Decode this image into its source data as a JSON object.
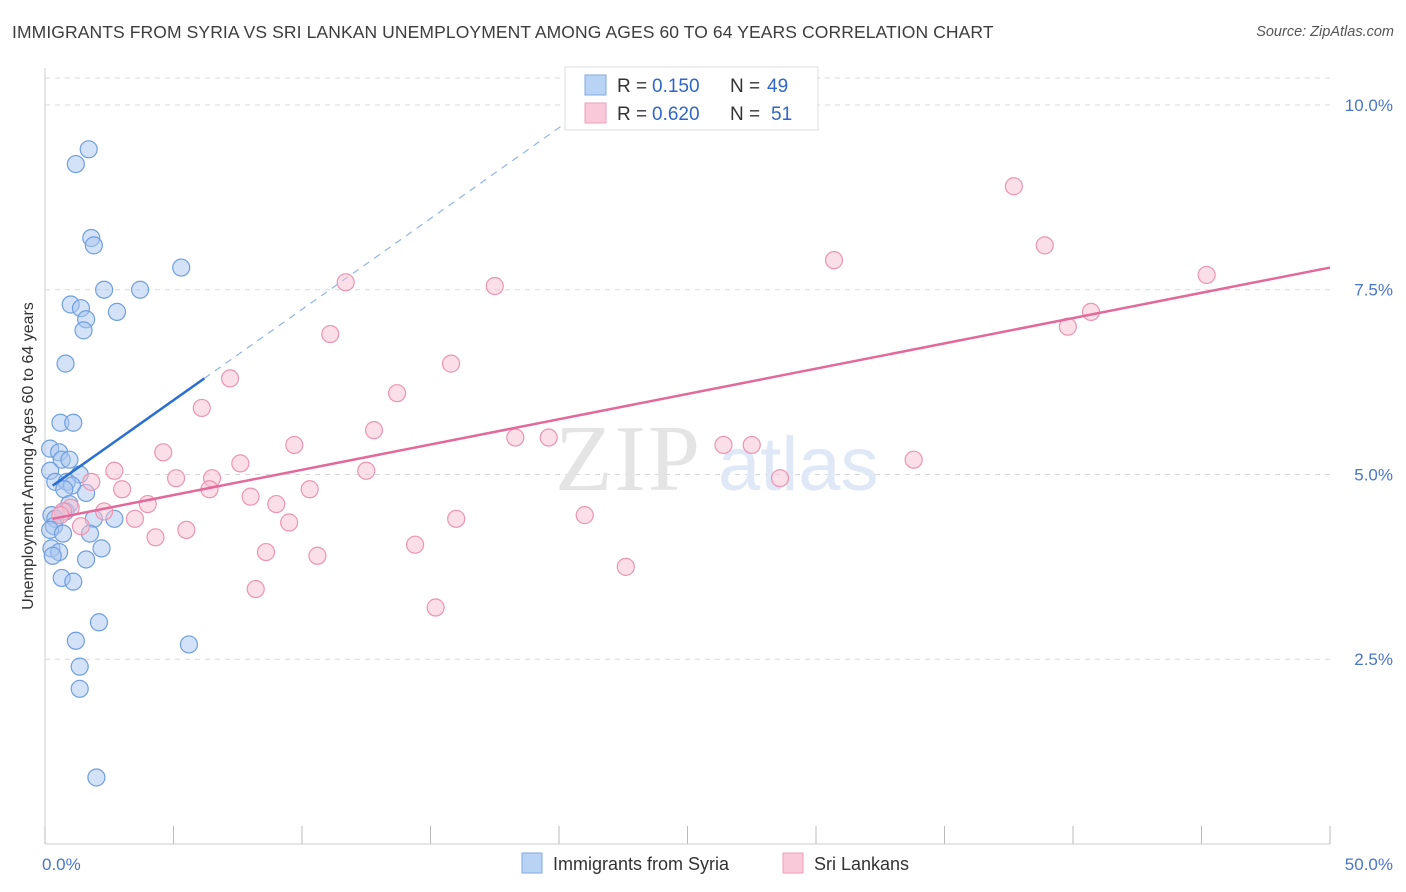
{
  "header": {
    "title": "IMMIGRANTS FROM SYRIA VS SRI LANKAN UNEMPLOYMENT AMONG AGES 60 TO 64 YEARS CORRELATION CHART",
    "source": "Source: ZipAtlas.com"
  },
  "watermark": {
    "zip": "ZIP",
    "atlas": "atlas"
  },
  "colors": {
    "syria_fill": "#a9c6f0",
    "syria_stroke": "#6f9fe0",
    "syria_line": "#2a6fcf",
    "srilanka_fill": "#f6bfd1",
    "srilanka_stroke": "#ec94b2",
    "srilanka_line": "#e2699a",
    "tick_label": "#4a76c8",
    "grid": "#d8d8d8"
  },
  "chart_data": {
    "type": "scatter",
    "title": "IMMIGRANTS FROM SYRIA VS SRI LANKAN UNEMPLOYMENT AMONG AGES 60 TO 64 YEARS CORRELATION CHART",
    "xlabel": "",
    "ylabel": "Unemployment Among Ages 60 to 64 years",
    "xlim": [
      0,
      50
    ],
    "ylim": [
      0,
      10.5
    ],
    "x_tick_labels": [
      "0.0%",
      "50.0%"
    ],
    "y_ticks": [
      {
        "value": 2.5,
        "label": "2.5%"
      },
      {
        "value": 5.0,
        "label": "5.0%"
      },
      {
        "value": 7.5,
        "label": "7.5%"
      },
      {
        "value": 10.0,
        "label": "10.0%"
      }
    ],
    "legend": {
      "entries": [
        {
          "r_label": "R =",
          "r_value": "0.150",
          "n_label": "N =",
          "n_value": "49"
        },
        {
          "r_label": "R =",
          "r_value": "0.620",
          "n_label": "N =",
          "n_value": "51"
        }
      ]
    },
    "series": [
      {
        "name": "Immigrants from Syria",
        "trend": {
          "x0": 0.3,
          "y0": 4.85,
          "x1": 6.2,
          "y1": 6.3,
          "extend_to_x": 21.2
        },
        "points": [
          [
            1.7,
            9.4
          ],
          [
            1.2,
            9.2
          ],
          [
            1.8,
            8.2
          ],
          [
            1.9,
            8.1
          ],
          [
            5.3,
            7.8
          ],
          [
            2.3,
            7.5
          ],
          [
            3.7,
            7.5
          ],
          [
            1.0,
            7.3
          ],
          [
            1.4,
            7.25
          ],
          [
            1.6,
            7.1
          ],
          [
            2.8,
            7.2
          ],
          [
            1.5,
            6.95
          ],
          [
            0.8,
            6.5
          ],
          [
            0.6,
            5.7
          ],
          [
            1.1,
            5.7
          ],
          [
            0.2,
            5.35
          ],
          [
            0.55,
            5.3
          ],
          [
            0.65,
            5.2
          ],
          [
            0.95,
            5.2
          ],
          [
            0.2,
            5.05
          ],
          [
            1.35,
            5.0
          ],
          [
            0.4,
            4.9
          ],
          [
            0.85,
            4.9
          ],
          [
            1.05,
            4.85
          ],
          [
            0.75,
            4.8
          ],
          [
            1.6,
            4.75
          ],
          [
            0.95,
            4.6
          ],
          [
            0.8,
            4.5
          ],
          [
            0.25,
            4.45
          ],
          [
            0.4,
            4.4
          ],
          [
            1.9,
            4.4
          ],
          [
            2.7,
            4.4
          ],
          [
            0.35,
            4.3
          ],
          [
            0.2,
            4.25
          ],
          [
            0.7,
            4.2
          ],
          [
            1.75,
            4.2
          ],
          [
            0.25,
            4.0
          ],
          [
            2.2,
            4.0
          ],
          [
            0.55,
            3.95
          ],
          [
            0.3,
            3.9
          ],
          [
            1.6,
            3.85
          ],
          [
            0.65,
            3.6
          ],
          [
            1.1,
            3.55
          ],
          [
            2.1,
            3.0
          ],
          [
            1.2,
            2.75
          ],
          [
            5.6,
            2.7
          ],
          [
            1.35,
            2.4
          ],
          [
            1.35,
            2.1
          ],
          [
            2.0,
            0.9
          ]
        ]
      },
      {
        "name": "Sri Lankans",
        "trend": {
          "x0": 0.3,
          "y0": 4.4,
          "x1": 50.0,
          "y1": 7.8
        },
        "points": [
          [
            37.7,
            8.9
          ],
          [
            38.9,
            8.1
          ],
          [
            30.7,
            7.9
          ],
          [
            45.2,
            7.7
          ],
          [
            11.7,
            7.6
          ],
          [
            17.5,
            7.55
          ],
          [
            39.8,
            7.0
          ],
          [
            40.7,
            7.2
          ],
          [
            11.1,
            6.9
          ],
          [
            15.8,
            6.5
          ],
          [
            7.2,
            6.3
          ],
          [
            13.7,
            6.1
          ],
          [
            6.1,
            5.9
          ],
          [
            12.8,
            5.6
          ],
          [
            18.3,
            5.5
          ],
          [
            19.6,
            5.5
          ],
          [
            26.4,
            5.4
          ],
          [
            27.5,
            5.4
          ],
          [
            9.7,
            5.4
          ],
          [
            4.6,
            5.3
          ],
          [
            33.8,
            5.2
          ],
          [
            7.6,
            5.15
          ],
          [
            12.5,
            5.05
          ],
          [
            2.7,
            5.05
          ],
          [
            5.1,
            4.95
          ],
          [
            6.5,
            4.95
          ],
          [
            28.6,
            4.95
          ],
          [
            1.8,
            4.9
          ],
          [
            3.0,
            4.8
          ],
          [
            6.4,
            4.8
          ],
          [
            10.3,
            4.8
          ],
          [
            8.0,
            4.7
          ],
          [
            4.0,
            4.6
          ],
          [
            9.0,
            4.6
          ],
          [
            1.0,
            4.55
          ],
          [
            0.7,
            4.5
          ],
          [
            2.3,
            4.5
          ],
          [
            0.6,
            4.45
          ],
          [
            3.5,
            4.4
          ],
          [
            9.5,
            4.35
          ],
          [
            16.0,
            4.4
          ],
          [
            21.0,
            4.45
          ],
          [
            5.5,
            4.25
          ],
          [
            1.4,
            4.3
          ],
          [
            4.3,
            4.15
          ],
          [
            14.4,
            4.05
          ],
          [
            8.6,
            3.95
          ],
          [
            10.6,
            3.9
          ],
          [
            22.6,
            3.75
          ],
          [
            8.2,
            3.45
          ],
          [
            15.2,
            3.2
          ]
        ]
      }
    ]
  },
  "bottom_legend": [
    {
      "label": "Immigrants from Syria"
    },
    {
      "label": "Sri Lankans"
    }
  ]
}
